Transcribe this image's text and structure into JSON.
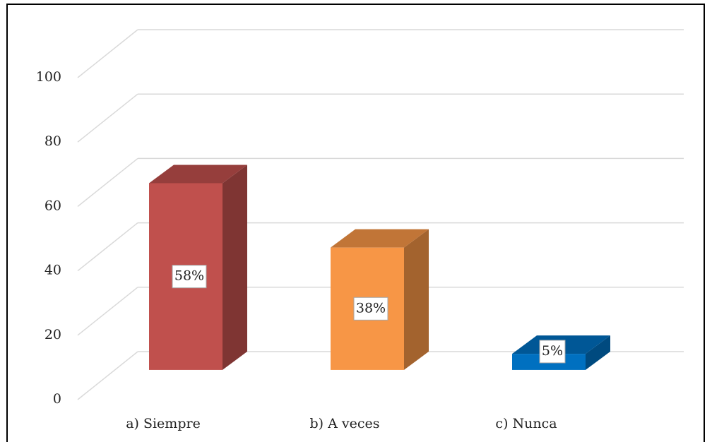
{
  "chart_data": {
    "type": "bar3d",
    "categories": [
      "a) Siempre",
      "b) A veces",
      "c) Nunca"
    ],
    "values": [
      58,
      38,
      5
    ],
    "value_labels": [
      "58%",
      "38%",
      "5%"
    ],
    "colors": [
      "#c0504d",
      "#f79646",
      "#0070c0"
    ],
    "ylim": [
      0,
      100
    ],
    "yticks": [
      0,
      20,
      40,
      60,
      80,
      100
    ],
    "grid": true
  }
}
